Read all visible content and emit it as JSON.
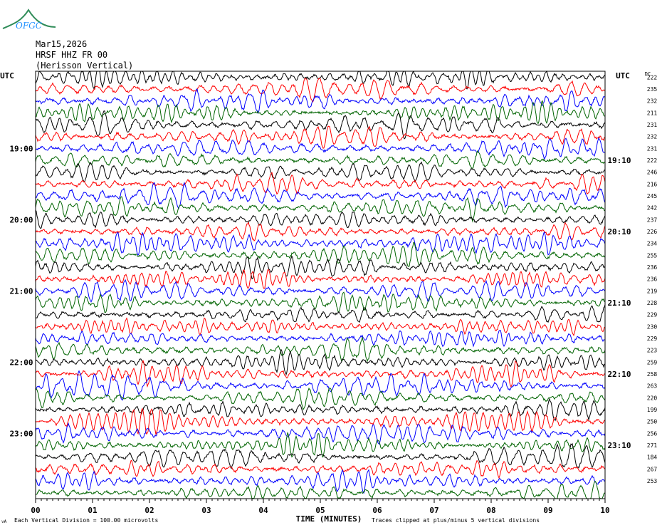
{
  "logo": {
    "text": "OFGC",
    "color": "#2e8b57"
  },
  "header": {
    "date": "Mar15,2026",
    "station": "HRSF HHZ FR 00",
    "channel_desc": "(Herisson Vertical)"
  },
  "footer": {
    "scale_text": "Each Vertical Division =  100.00 microvolts",
    "clip_text": "Traces clipped at plus/minus 5 vertical divisions",
    "corner_mark": "vA"
  },
  "chart_data": {
    "type": "line",
    "title": "",
    "xlabel": "TIME (MINUTES)",
    "x_ticks": [
      "00",
      "01",
      "02",
      "03",
      "04",
      "05",
      "06",
      "07",
      "08",
      "09",
      "10"
    ],
    "xlim": [
      0,
      10
    ],
    "left_axis_title": "UTC",
    "right_axis_title": "UTC",
    "dc_header": "DC",
    "left_hour_labels": [
      "19:00",
      "20:00",
      "21:00",
      "22:00",
      "23:00"
    ],
    "left_hour_rows": [
      6,
      12,
      18,
      24,
      30
    ],
    "right_hour_labels": [
      "19:10",
      "20:10",
      "21:10",
      "22:10",
      "23:10"
    ],
    "right_hour_rows": [
      7,
      13,
      19,
      25,
      31
    ],
    "dc_offsets": [
      222,
      235,
      232,
      211,
      231,
      232,
      231,
      222,
      246,
      216,
      245,
      242,
      237,
      226,
      234,
      255,
      236,
      236,
      219,
      228,
      229,
      230,
      229,
      223,
      259,
      258,
      263,
      220,
      199,
      250,
      256,
      271,
      184,
      267,
      253
    ],
    "trace_colors": [
      "#000000",
      "#ff0000",
      "#0000ff",
      "#006400"
    ],
    "rows": 36,
    "row_minutes": 10,
    "vertical_division_microvolts": 100.0,
    "clip_divisions": 5
  }
}
